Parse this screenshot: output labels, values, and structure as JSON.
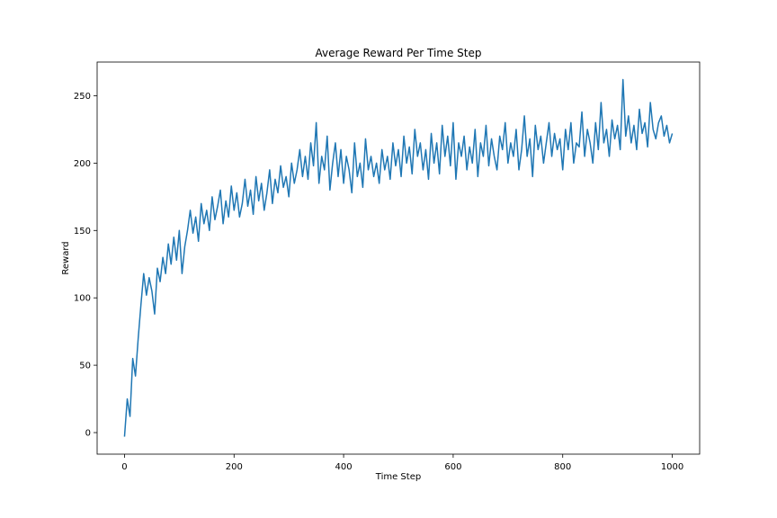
{
  "chart_data": {
    "type": "line",
    "title": "Average Reward Per Time Step",
    "xlabel": "Time Step",
    "ylabel": "Reward",
    "xlim": [
      -50,
      1050
    ],
    "ylim": [
      -16,
      275
    ],
    "xticks": [
      0,
      200,
      400,
      600,
      800,
      1000
    ],
    "yticks": [
      0,
      50,
      100,
      150,
      200,
      250
    ],
    "grid": false,
    "legend": "none",
    "series": [
      {
        "color": "#1f77b4",
        "x": [
          0,
          5,
          10,
          15,
          20,
          25,
          30,
          35,
          40,
          45,
          50,
          55,
          60,
          65,
          70,
          75,
          80,
          85,
          90,
          95,
          100,
          105,
          110,
          115,
          120,
          125,
          130,
          135,
          140,
          145,
          150,
          155,
          160,
          165,
          170,
          175,
          180,
          185,
          190,
          195,
          200,
          205,
          210,
          215,
          220,
          225,
          230,
          235,
          240,
          245,
          250,
          255,
          260,
          265,
          270,
          275,
          280,
          285,
          290,
          295,
          300,
          305,
          310,
          315,
          320,
          325,
          330,
          335,
          340,
          345,
          350,
          355,
          360,
          365,
          370,
          375,
          380,
          385,
          390,
          395,
          400,
          405,
          410,
          415,
          420,
          425,
          430,
          435,
          440,
          445,
          450,
          455,
          460,
          465,
          470,
          475,
          480,
          485,
          490,
          495,
          500,
          505,
          510,
          515,
          520,
          525,
          530,
          535,
          540,
          545,
          550,
          555,
          560,
          565,
          570,
          575,
          580,
          585,
          590,
          595,
          600,
          605,
          610,
          615,
          620,
          625,
          630,
          635,
          640,
          645,
          650,
          655,
          660,
          665,
          670,
          675,
          680,
          685,
          690,
          695,
          700,
          705,
          710,
          715,
          720,
          725,
          730,
          735,
          740,
          745,
          750,
          755,
          760,
          765,
          770,
          775,
          780,
          785,
          790,
          795,
          800,
          805,
          810,
          815,
          820,
          825,
          830,
          835,
          840,
          845,
          850,
          855,
          860,
          865,
          870,
          875,
          880,
          885,
          890,
          895,
          900,
          905,
          910,
          915,
          920,
          925,
          930,
          935,
          940,
          945,
          950,
          955,
          960,
          965,
          970,
          975,
          980,
          985,
          990,
          995,
          1000
        ],
        "values": [
          -3,
          25,
          12,
          55,
          42,
          70,
          95,
          118,
          102,
          115,
          105,
          88,
          122,
          112,
          130,
          118,
          140,
          125,
          145,
          128,
          150,
          118,
          138,
          150,
          165,
          148,
          160,
          142,
          170,
          155,
          165,
          150,
          175,
          158,
          168,
          180,
          155,
          172,
          160,
          183,
          165,
          178,
          160,
          170,
          188,
          168,
          180,
          162,
          190,
          172,
          185,
          165,
          178,
          195,
          170,
          188,
          178,
          198,
          182,
          190,
          175,
          200,
          185,
          195,
          210,
          190,
          205,
          188,
          215,
          198,
          230,
          185,
          205,
          195,
          220,
          180,
          200,
          215,
          190,
          210,
          185,
          205,
          195,
          178,
          215,
          190,
          200,
          182,
          218,
          195,
          205,
          190,
          200,
          185,
          210,
          195,
          205,
          188,
          215,
          198,
          210,
          190,
          220,
          200,
          212,
          192,
          225,
          205,
          215,
          195,
          210,
          188,
          222,
          200,
          215,
          192,
          228,
          205,
          220,
          198,
          230,
          188,
          215,
          205,
          220,
          195,
          212,
          200,
          225,
          190,
          215,
          205,
          228,
          198,
          218,
          205,
          195,
          220,
          210,
          230,
          200,
          215,
          205,
          225,
          195,
          210,
          235,
          205,
          218,
          190,
          228,
          210,
          220,
          200,
          215,
          230,
          205,
          222,
          210,
          218,
          195,
          225,
          210,
          230,
          200,
          215,
          212,
          238,
          205,
          225,
          215,
          200,
          230,
          210,
          245,
          215,
          225,
          205,
          232,
          218,
          228,
          210,
          262,
          220,
          235,
          215,
          228,
          210,
          240,
          222,
          230,
          212,
          245,
          225,
          218,
          230,
          235,
          220,
          228,
          215,
          222
        ]
      }
    ]
  }
}
